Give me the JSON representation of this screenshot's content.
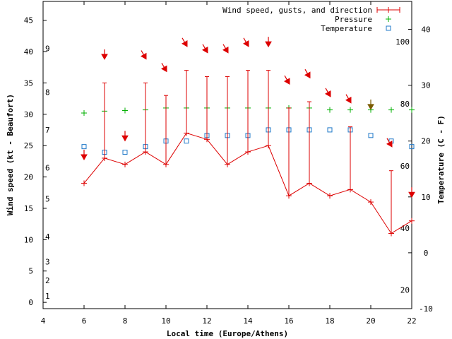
{
  "chart_data": {
    "type": "line",
    "xlabel": "Local time (Europe/Athens)",
    "ylabel_left": "Wind speed (kt - Beaufort)",
    "ylabel_right": "Temperature (C - F)",
    "xlim": [
      4,
      22
    ],
    "x_ticks": [
      "4",
      "6",
      "8",
      "10",
      "12",
      "14",
      "16",
      "18",
      "20",
      "22"
    ],
    "ylim_left": [
      -1,
      48
    ],
    "left_ticks": [
      "0",
      "5",
      "10",
      "15",
      "20",
      "25",
      "30",
      "35",
      "40",
      "45"
    ],
    "beaufort_ticks": [
      "1",
      "2",
      "3",
      "4",
      "5",
      "6",
      "7",
      "8",
      "9"
    ],
    "ylim_temp": [
      -10,
      45
    ],
    "temp_c_ticks": [
      "-10",
      "0",
      "10",
      "20",
      "30",
      "40"
    ],
    "temp_f_ticks": [
      "20",
      "40",
      "60",
      "80",
      "100"
    ],
    "legend": {
      "position": "top-right",
      "wind": "Wind speed, gusts, and direction",
      "pressure": "Pressure",
      "temperature": "Temperature"
    },
    "colors": {
      "wind": "#dd0000",
      "pressure": "#00b000",
      "temperature": "#1f78c8",
      "direction_dark": "#7a5a00"
    },
    "hours": [
      6,
      7,
      8,
      9,
      10,
      11,
      12,
      13,
      14,
      15,
      16,
      17,
      18,
      19,
      20,
      21,
      22
    ],
    "wind_speed": [
      19,
      23,
      22,
      24,
      22,
      27,
      26,
      22,
      24,
      25,
      17,
      19,
      17,
      18,
      16,
      11,
      13
    ],
    "wind_gust": [
      null,
      35,
      null,
      35,
      33,
      37,
      36,
      36,
      37,
      37,
      31,
      32,
      null,
      28,
      null,
      21,
      null
    ],
    "direction_arrow_y": [
      23,
      39,
      26,
      39,
      37,
      41,
      40,
      40,
      41,
      41,
      35,
      36,
      33,
      32,
      31,
      25,
      17
    ],
    "direction_angle": [
      0,
      0,
      0,
      -30,
      -30,
      -30,
      -30,
      -30,
      -30,
      0,
      -30,
      -30,
      -30,
      -30,
      0,
      -30,
      0
    ],
    "pressure_y": [
      30.2,
      30.5,
      30.6,
      30.7,
      31,
      31,
      31,
      31,
      31,
      31,
      31,
      31,
      30.7,
      30.7,
      30.7,
      30.7,
      30.7
    ],
    "temperature_c": [
      19,
      18,
      18,
      19,
      20,
      20,
      21,
      21,
      21,
      22,
      22,
      22,
      22,
      22,
      21,
      20,
      19
    ]
  }
}
